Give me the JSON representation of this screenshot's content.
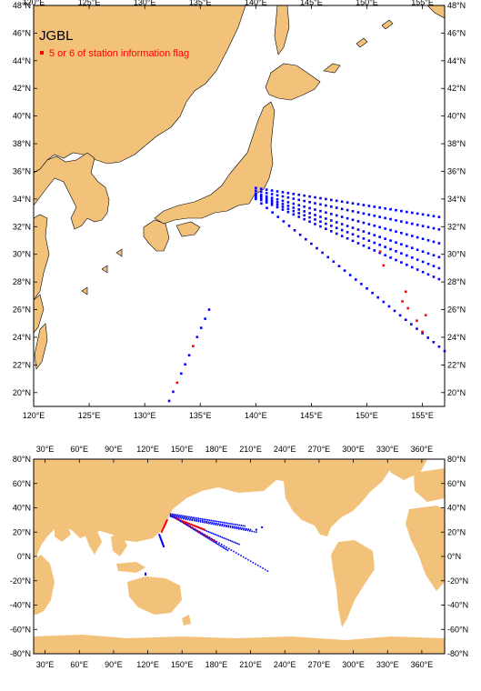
{
  "top_map": {
    "title": "JGBL",
    "legend_label": "5 or 6 of station information flag",
    "lon_labels": [
      "120°E",
      "125°E",
      "130°E",
      "135°E",
      "140°E",
      "145°E",
      "150°E",
      "155°E"
    ],
    "lat_labels": [
      "48°N",
      "46°N",
      "44°N",
      "42°N",
      "40°N",
      "38°N",
      "36°N",
      "34°N",
      "32°N",
      "30°N",
      "28°N",
      "26°N",
      "24°N",
      "22°N",
      "20°N"
    ],
    "lon_range": [
      120,
      157
    ],
    "lat_range": [
      19,
      48
    ],
    "colors": {
      "land": "#f3c27a",
      "ocean": "#ffffff",
      "station": "#0000ff",
      "flagged": "#ff0000",
      "border": "#000000"
    }
  },
  "bottom_map": {
    "lon_labels": [
      "30°E",
      "60°E",
      "90°E",
      "120°E",
      "150°E",
      "180°E",
      "210°E",
      "240°E",
      "270°E",
      "300°E",
      "330°E",
      "360°E"
    ],
    "lat_labels": [
      "80°N",
      "60°N",
      "40°N",
      "20°N",
      "0°N",
      "-20°N",
      "-40°N",
      "-60°N",
      "-80°N"
    ],
    "lon_range": [
      20,
      380
    ],
    "lat_range": [
      -80,
      80
    ]
  }
}
